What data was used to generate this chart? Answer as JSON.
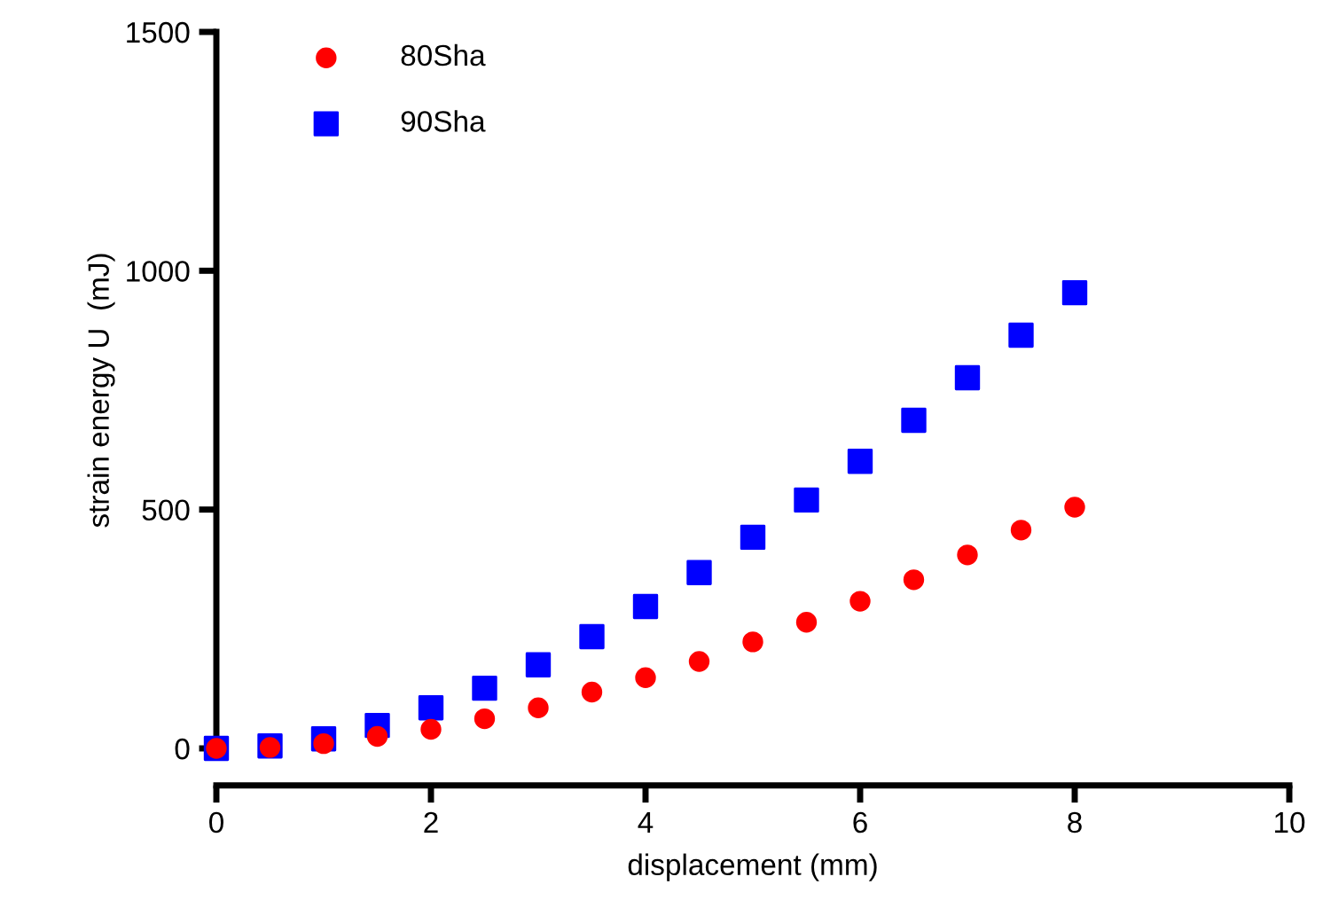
{
  "chart_data": {
    "type": "scatter",
    "xlabel": "displacement (mm)",
    "ylabel": "strain energy U  (mJ)",
    "x": [
      0,
      0.5,
      1,
      1.5,
      2,
      2.5,
      3,
      3.5,
      4,
      4.5,
      5,
      5.5,
      6,
      6.5,
      7,
      7.5,
      8
    ],
    "series": [
      {
        "name": "80Sha",
        "color": "#ff0000",
        "marker": "circle",
        "values": [
          0,
          2,
          10,
          25,
          40,
          62,
          85,
          118,
          148,
          182,
          223,
          264,
          308,
          353,
          405,
          457,
          505
        ]
      },
      {
        "name": "90Sha",
        "color": "#0000ff",
        "marker": "square",
        "values": [
          0,
          5,
          20,
          48,
          85,
          126,
          175,
          234,
          297,
          368,
          442,
          520,
          601,
          687,
          776,
          865,
          954
        ]
      }
    ],
    "xlim": [
      0,
      10
    ],
    "xticks": [
      0,
      2,
      4,
      6,
      8,
      10
    ],
    "ylim": [
      0,
      1500
    ],
    "yticks": [
      0,
      500,
      1000,
      1500
    ],
    "grid": false,
    "legend": "top left"
  }
}
